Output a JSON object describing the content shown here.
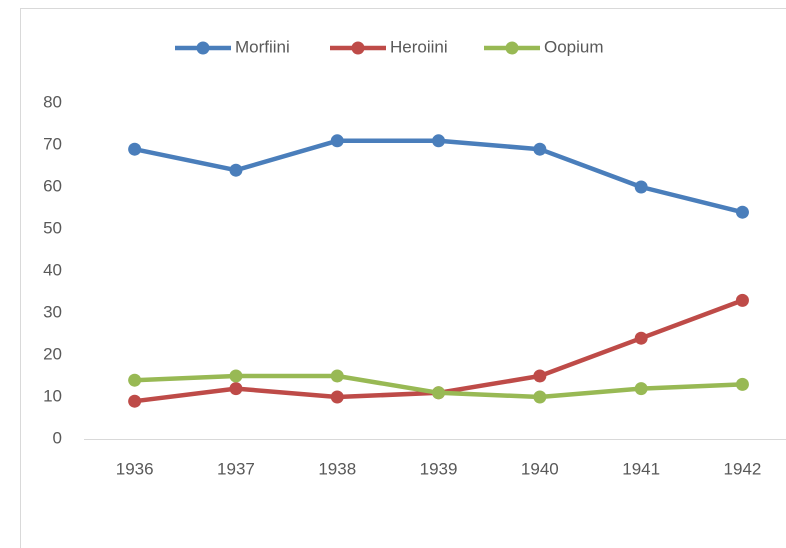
{
  "chart_data": {
    "type": "line",
    "categories": [
      "1936",
      "1937",
      "1938",
      "1939",
      "1940",
      "1941",
      "1942"
    ],
    "series": [
      {
        "name": "Morfiini",
        "color": "#4a7ebb",
        "values": [
          69,
          64,
          71,
          71,
          69,
          60,
          54
        ]
      },
      {
        "name": "Heroiini",
        "color": "#be4b48",
        "values": [
          9,
          12,
          10,
          11,
          15,
          24,
          33
        ]
      },
      {
        "name": "Oopium",
        "color": "#98b954",
        "values": [
          14,
          15,
          15,
          11,
          10,
          12,
          13
        ]
      }
    ],
    "ylim": [
      0,
      80
    ],
    "yticks": [
      0,
      10,
      20,
      30,
      40,
      50,
      60,
      70,
      80
    ],
    "grid": false,
    "legend": "top"
  }
}
